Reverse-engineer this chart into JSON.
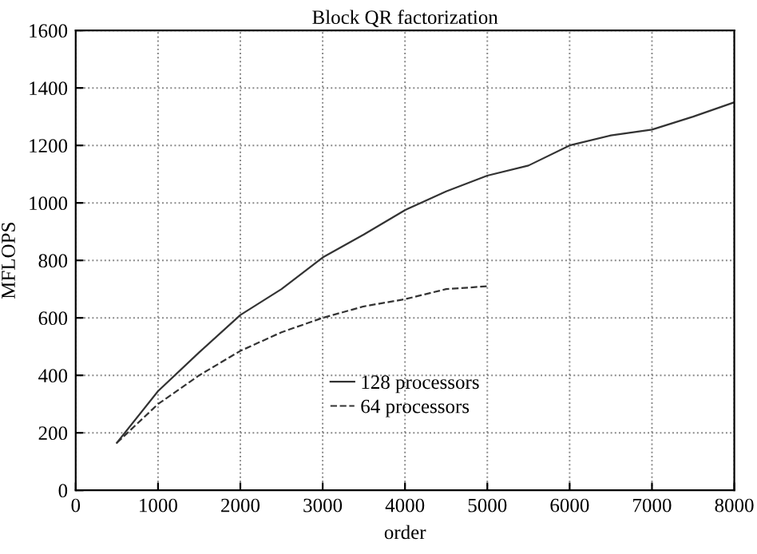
{
  "chart_data": {
    "type": "line",
    "title": "Block QR factorization",
    "xlabel": "order",
    "ylabel": "MFLOPS",
    "xlim": [
      0,
      8000
    ],
    "xticks": [
      0,
      1000,
      2000,
      3000,
      4000,
      5000,
      6000,
      7000,
      8000
    ],
    "ylim": [
      0,
      1600
    ],
    "yticks": [
      0,
      200,
      400,
      600,
      800,
      1000,
      1200,
      1400,
      1600
    ],
    "grid": true,
    "legend": "bottom",
    "marker": "none",
    "series": [
      {
        "name": "128 processors",
        "color": "#333333",
        "line_style": "solid",
        "x": [
          500,
          1000,
          1500,
          2000,
          2500,
          3000,
          3500,
          4000,
          4500,
          5000,
          5500,
          6000,
          6500,
          7000,
          7500,
          8000
        ],
        "values": [
          165,
          345,
          480,
          610,
          700,
          810,
          890,
          975,
          1040,
          1095,
          1130,
          1200,
          1235,
          1255,
          1300,
          1350
        ]
      },
      {
        "name": "64 processors",
        "color": "#333333",
        "line_style": "dashed",
        "x": [
          500,
          1000,
          1500,
          2000,
          2500,
          3000,
          3500,
          4000,
          4500,
          5000
        ],
        "values": [
          165,
          300,
          400,
          485,
          550,
          600,
          640,
          665,
          700,
          710
        ]
      }
    ]
  }
}
